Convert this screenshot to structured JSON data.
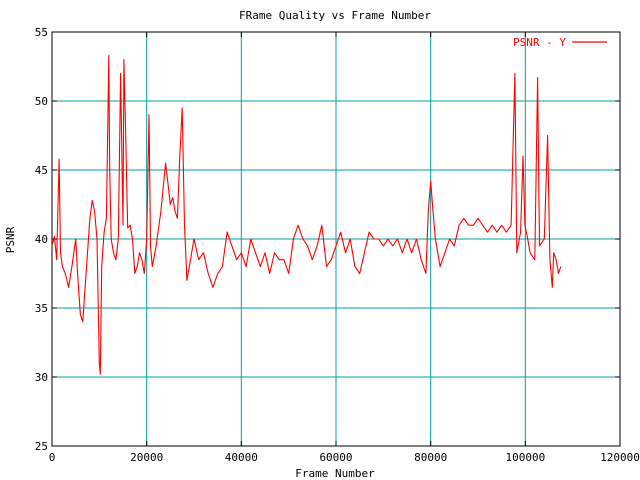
{
  "chart_data": {
    "type": "line",
    "title": "FRame Quality vs Frame Number",
    "xlabel": "Frame Number",
    "ylabel": "PSNR",
    "xlim": [
      0,
      120000
    ],
    "ylim": [
      25,
      55
    ],
    "xticks": [
      0,
      20000,
      40000,
      60000,
      80000,
      100000,
      120000
    ],
    "xtick_labels": [
      "0",
      "20000",
      "40000",
      "60000",
      "80000",
      "100000",
      "120000"
    ],
    "yticks": [
      25,
      30,
      35,
      40,
      45,
      50,
      55
    ],
    "ytick_labels": [
      "25",
      "30",
      "35",
      "40",
      "45",
      "50",
      "55"
    ],
    "grid": true,
    "legend_position": "top-right",
    "colors": {
      "series": "#ff0000",
      "grid": "#00a0a0",
      "axis": "#000000"
    },
    "series": [
      {
        "name": "PSNR - Y",
        "x": [
          0,
          500,
          1000,
          1500,
          1800,
          2200,
          2800,
          3500,
          4200,
          5000,
          5500,
          6000,
          6500,
          7000,
          7500,
          8000,
          8500,
          9000,
          9500,
          10000,
          10200,
          10500,
          11000,
          11500,
          12000,
          12200,
          12500,
          13000,
          13500,
          14000,
          14500,
          15000,
          15200,
          15500,
          16000,
          16500,
          17000,
          17500,
          18000,
          18500,
          19000,
          19500,
          20000,
          20500,
          20800,
          21200,
          22000,
          23000,
          24000,
          24500,
          25000,
          25500,
          26000,
          26500,
          27000,
          27500,
          28000,
          28500,
          29000,
          30000,
          31000,
          32000,
          33000,
          34000,
          35000,
          36000,
          37000,
          38000,
          39000,
          40000,
          41000,
          42000,
          43000,
          44000,
          45000,
          46000,
          47000,
          48000,
          49000,
          50000,
          51000,
          52000,
          53000,
          54000,
          55000,
          56000,
          57000,
          58000,
          59000,
          60000,
          61000,
          62000,
          63000,
          64000,
          65000,
          66000,
          67000,
          68000,
          69000,
          70000,
          71000,
          72000,
          73000,
          74000,
          75000,
          76000,
          77000,
          78000,
          79000,
          79500,
          80000,
          80500,
          81000,
          82000,
          83000,
          84000,
          85000,
          86000,
          87000,
          88000,
          89000,
          90000,
          91000,
          92000,
          93000,
          94000,
          95000,
          96000,
          97000,
          97800,
          98200,
          99000,
          99500,
          99900,
          100500,
          101000,
          102000,
          102600,
          103000,
          104000,
          104700,
          105200,
          105700,
          106000,
          106500,
          107000,
          107500
        ],
        "y": [
          39.5,
          40.2,
          38.5,
          45.8,
          39,
          38,
          37.5,
          36.5,
          38,
          40,
          37,
          34.5,
          34,
          36.5,
          39,
          41.5,
          42.8,
          42,
          40,
          31,
          30.2,
          38,
          40.5,
          41.5,
          53.3,
          45,
          40,
          39,
          38.5,
          40,
          52,
          41,
          53,
          48.5,
          40.8,
          41,
          40,
          37.5,
          38,
          39,
          38.5,
          37.5,
          40,
          49,
          39.5,
          38,
          39.5,
          42,
          45.5,
          44,
          42.5,
          43,
          42,
          41.5,
          46,
          49.5,
          41,
          37,
          38,
          40,
          38.5,
          39,
          37.5,
          36.5,
          37.5,
          38,
          40.5,
          39.5,
          38.5,
          39,
          38,
          40,
          39,
          38,
          39,
          37.5,
          39,
          38.5,
          38.5,
          37.5,
          40,
          41,
          40,
          39.5,
          38.5,
          39.5,
          41,
          38,
          38.5,
          39.5,
          40.5,
          39,
          40,
          38,
          37.5,
          39,
          40.5,
          40,
          40,
          39.5,
          40,
          39.5,
          40,
          39,
          40,
          39,
          40,
          38.5,
          37.5,
          42,
          44.2,
          42,
          40,
          38,
          39,
          40,
          39.5,
          41,
          41.5,
          41,
          41,
          41.5,
          41,
          40.5,
          41,
          40.5,
          41,
          40.5,
          41,
          52,
          39,
          40.5,
          46,
          41,
          40,
          39,
          38.5,
          51.7,
          39.5,
          40,
          47.5,
          38.5,
          36.5,
          39,
          38.5,
          37.5,
          38
        ]
      }
    ]
  }
}
